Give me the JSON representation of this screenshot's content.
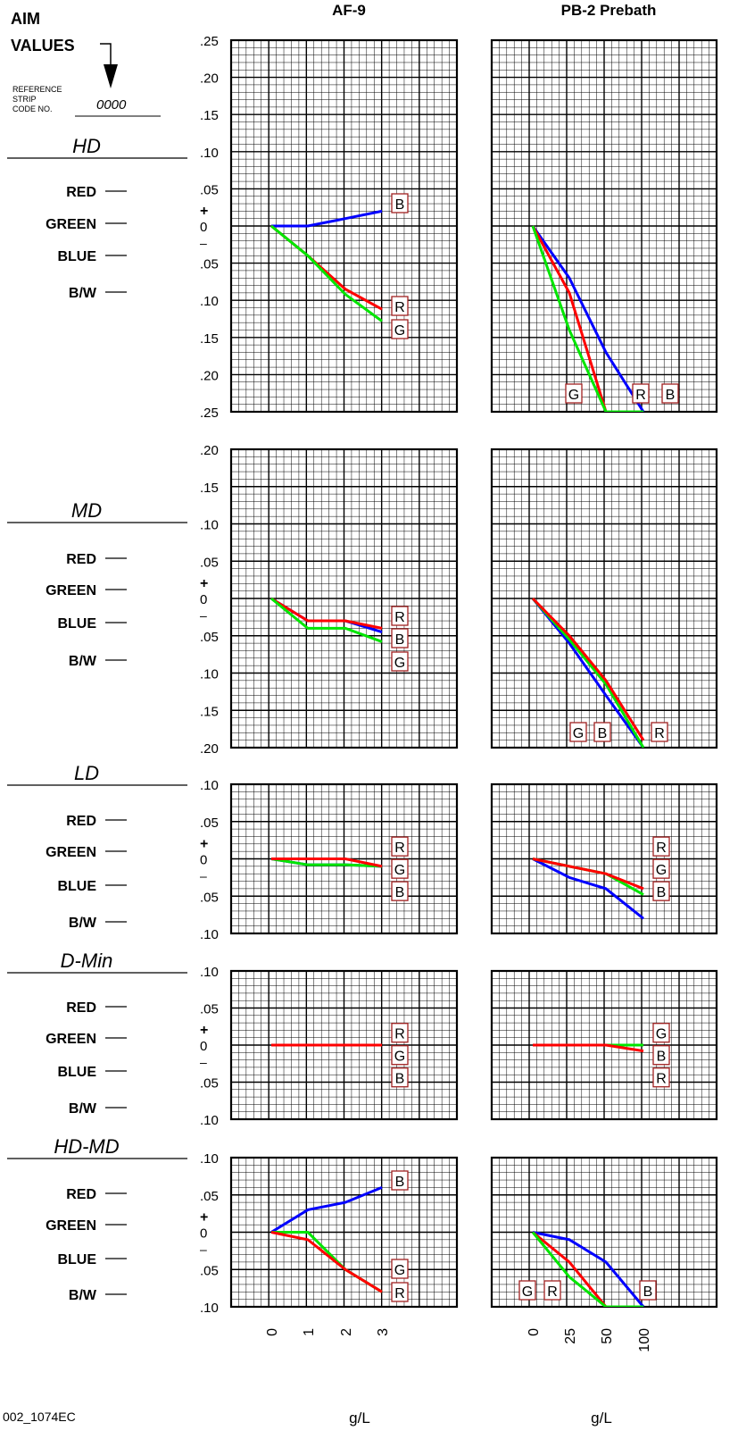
{
  "header": {
    "aim": "AIM",
    "values": "VALUES",
    "ref_lines": [
      "REFERENCE",
      "STRIP",
      "CODE NO."
    ],
    "code": "0000",
    "col_titles": [
      "AF-9",
      "PB-2 Prebath"
    ]
  },
  "colors": {
    "R": "#ff0000",
    "G": "#00e600",
    "B": "#0000ff",
    "box": "#a02020"
  },
  "channel_labels": [
    "RED",
    "GREEN",
    "BLUE",
    "B/W"
  ],
  "footer": {
    "code": "002_1074EC",
    "xlabel_left": "g/L",
    "xlabel_right": "g/L"
  },
  "chart_data": [
    {
      "type": "line",
      "title": "HD",
      "column": "AF-9",
      "y_ticks": [
        ".25",
        ".20",
        ".15",
        ".10",
        ".05",
        "0",
        ".05",
        ".10",
        ".15",
        ".20",
        ".25"
      ],
      "ylim": [
        -0.25,
        0.25
      ],
      "x": [
        0,
        1,
        2,
        3
      ],
      "series": [
        {
          "name": "B",
          "color": "B",
          "values": [
            0,
            0,
            0.01,
            0.02
          ]
        },
        {
          "name": "R",
          "color": "R",
          "values": [
            0,
            -0.04,
            -0.085,
            -0.112
          ]
        },
        {
          "name": "G",
          "color": "G",
          "values": [
            0,
            -0.04,
            -0.092,
            -0.128
          ]
        }
      ],
      "label_order": [
        "B",
        "R",
        "G"
      ]
    },
    {
      "type": "line",
      "title": "HD",
      "column": "PB-2 Prebath",
      "ylim": [
        -0.25,
        0.25
      ],
      "x": [
        0,
        25,
        50,
        100
      ],
      "series": [
        {
          "name": "B",
          "color": "B",
          "values": [
            0,
            -0.07,
            -0.17,
            -0.25
          ]
        },
        {
          "name": "R",
          "color": "R",
          "values": [
            0,
            -0.09,
            -0.25,
            -0.25
          ]
        },
        {
          "name": "G",
          "color": "G",
          "values": [
            0,
            -0.14,
            -0.25,
            -0.25
          ]
        }
      ],
      "label_order": [
        "G",
        "R",
        "B"
      ]
    },
    {
      "type": "line",
      "title": "MD",
      "column": "AF-9",
      "y_ticks": [
        ".20",
        ".15",
        ".10",
        ".05",
        "0",
        ".05",
        ".10",
        ".15",
        ".20"
      ],
      "ylim": [
        -0.2,
        0.2
      ],
      "x": [
        0,
        1,
        2,
        3
      ],
      "series": [
        {
          "name": "B",
          "color": "B",
          "values": [
            0,
            -0.03,
            -0.03,
            -0.045
          ]
        },
        {
          "name": "R",
          "color": "R",
          "values": [
            0,
            -0.03,
            -0.03,
            -0.04
          ]
        },
        {
          "name": "G",
          "color": "G",
          "values": [
            0,
            -0.04,
            -0.04,
            -0.058
          ]
        }
      ],
      "label_order": [
        "R",
        "B",
        "G"
      ]
    },
    {
      "type": "line",
      "title": "MD",
      "column": "PB-2 Prebath",
      "ylim": [
        -0.2,
        0.2
      ],
      "x": [
        0,
        25,
        50,
        100
      ],
      "series": [
        {
          "name": "B",
          "color": "B",
          "values": [
            0,
            -0.06,
            -0.13,
            -0.2
          ]
        },
        {
          "name": "G",
          "color": "G",
          "values": [
            0,
            -0.055,
            -0.115,
            -0.2
          ]
        },
        {
          "name": "R",
          "color": "R",
          "values": [
            0,
            -0.05,
            -0.11,
            -0.19
          ]
        }
      ],
      "label_order": [
        "G",
        "B",
        "R"
      ]
    },
    {
      "type": "line",
      "title": "LD",
      "column": "AF-9",
      "y_ticks": [
        ".10",
        ".05",
        "0",
        ".05",
        ".10"
      ],
      "ylim": [
        -0.1,
        0.1
      ],
      "x": [
        0,
        1,
        2,
        3
      ],
      "series": [
        {
          "name": "B",
          "color": "B",
          "values": [
            0,
            -0.008,
            -0.008,
            -0.01
          ]
        },
        {
          "name": "G",
          "color": "G",
          "values": [
            0,
            -0.008,
            -0.008,
            -0.01
          ]
        },
        {
          "name": "R",
          "color": "R",
          "values": [
            0,
            0,
            0,
            -0.01
          ]
        }
      ],
      "label_order": [
        "R",
        "G",
        "B"
      ]
    },
    {
      "type": "line",
      "title": "LD",
      "column": "PB-2 Prebath",
      "ylim": [
        -0.1,
        0.1
      ],
      "x": [
        0,
        25,
        50,
        100
      ],
      "series": [
        {
          "name": "B",
          "color": "B",
          "values": [
            0,
            -0.025,
            -0.04,
            -0.08
          ]
        },
        {
          "name": "G",
          "color": "G",
          "values": [
            0,
            -0.01,
            -0.02,
            -0.048
          ]
        },
        {
          "name": "R",
          "color": "R",
          "values": [
            0,
            -0.01,
            -0.02,
            -0.04
          ]
        }
      ],
      "label_order": [
        "R",
        "G",
        "B"
      ]
    },
    {
      "type": "line",
      "title": "D-Min",
      "column": "AF-9",
      "y_ticks": [
        ".10",
        ".05",
        "0",
        ".05",
        ".10"
      ],
      "ylim": [
        -0.1,
        0.1
      ],
      "x": [
        0,
        1,
        2,
        3
      ],
      "series": [
        {
          "name": "B",
          "color": "B",
          "values": [
            0,
            0,
            0,
            0
          ]
        },
        {
          "name": "G",
          "color": "G",
          "values": [
            0,
            0,
            0,
            0
          ]
        },
        {
          "name": "R",
          "color": "R",
          "values": [
            0,
            0,
            0,
            0
          ]
        }
      ],
      "label_order": [
        "R",
        "G",
        "B"
      ]
    },
    {
      "type": "line",
      "title": "D-Min",
      "column": "PB-2 Prebath",
      "ylim": [
        -0.1,
        0.1
      ],
      "x": [
        0,
        25,
        50,
        100
      ],
      "series": [
        {
          "name": "B",
          "color": "B",
          "values": [
            0,
            0,
            0,
            0
          ]
        },
        {
          "name": "G",
          "color": "G",
          "values": [
            0,
            0,
            0,
            0
          ]
        },
        {
          "name": "R",
          "color": "R",
          "values": [
            0,
            0,
            0,
            -0.008
          ]
        }
      ],
      "label_order": [
        "G",
        "B",
        "R"
      ]
    },
    {
      "type": "line",
      "title": "HD-MD",
      "column": "AF-9",
      "y_ticks": [
        ".10",
        ".05",
        "0",
        ".05",
        ".10"
      ],
      "ylim": [
        -0.1,
        0.1
      ],
      "x": [
        0,
        1,
        2,
        3
      ],
      "series": [
        {
          "name": "B",
          "color": "B",
          "values": [
            0,
            0.03,
            0.04,
            0.06
          ]
        },
        {
          "name": "G",
          "color": "G",
          "values": [
            0,
            0,
            -0.05,
            -0.08
          ]
        },
        {
          "name": "R",
          "color": "R",
          "values": [
            0,
            -0.01,
            -0.05,
            -0.08
          ]
        }
      ],
      "label_order": [
        "B",
        "G",
        "R"
      ]
    },
    {
      "type": "line",
      "title": "HD-MD",
      "column": "PB-2 Prebath",
      "ylim": [
        -0.1,
        0.1
      ],
      "x": [
        0,
        25,
        50,
        100
      ],
      "series": [
        {
          "name": "B",
          "color": "B",
          "values": [
            0,
            -0.01,
            -0.04,
            -0.1
          ]
        },
        {
          "name": "R",
          "color": "R",
          "values": [
            0,
            -0.04,
            -0.1,
            -0.1
          ]
        },
        {
          "name": "G",
          "color": "G",
          "values": [
            0,
            -0.06,
            -0.1,
            -0.1
          ]
        }
      ],
      "label_order": [
        "G",
        "R",
        "B"
      ]
    }
  ],
  "x_tick_labels": {
    "left": [
      "0",
      "1",
      "2",
      "3"
    ],
    "right": [
      "0",
      "25",
      "50",
      "100"
    ]
  },
  "sign_plus": "+",
  "sign_minus": "–"
}
